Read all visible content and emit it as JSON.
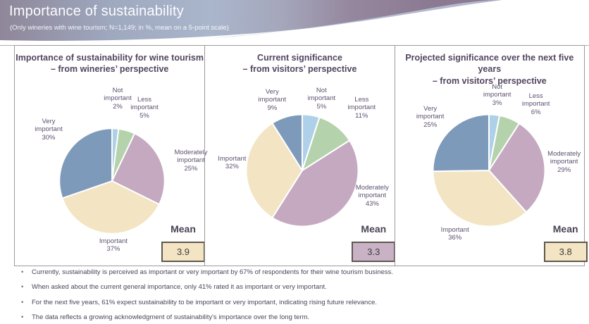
{
  "header": {
    "title": "Importance of sustainability",
    "subtitle": "(Only wineries with wine tourism; N=1,149; in %, mean on a 5-point scale)"
  },
  "colors": {
    "not_important": "#aed0e8",
    "less_important": "#b4d2ab",
    "moderately_important": "#c4a9c0",
    "important": "#f3e4c3",
    "very_important": "#7e9aba",
    "mean_box_tan": "#f3e4c3",
    "mean_box_mauve": "#c9b2c6",
    "mean_box_border": "#5f584e",
    "panel_border": "#9a9a9a"
  },
  "chart_data": [
    {
      "type": "pie",
      "title_line1": "Importance of sustainability for wine tourism",
      "title_line2": "– from wineries’ perspective",
      "legend_position": "around-slices",
      "slices": [
        {
          "label": "Not important",
          "value": 2,
          "value_label": "2%",
          "color": "#aed0e8"
        },
        {
          "label": "Less important",
          "value": 5,
          "value_label": "5%",
          "color": "#b4d2ab"
        },
        {
          "label": "Moderately important",
          "value": 25,
          "value_label": "25%",
          "color": "#c4a9c0"
        },
        {
          "label": "Important",
          "value": 37,
          "value_label": "37%",
          "color": "#f3e4c3"
        },
        {
          "label": "Very important",
          "value": 30,
          "value_label": "30%",
          "color": "#7e9aba"
        }
      ],
      "mean_label": "Mean",
      "mean_value": "3.9",
      "mean_box_color": "#f3e4c3"
    },
    {
      "type": "pie",
      "title_line1": "Current significance",
      "title_line2": "– from visitors’ perspective",
      "legend_position": "around-slices",
      "slices": [
        {
          "label": "Not important",
          "value": 5,
          "value_label": "5%",
          "color": "#aed0e8"
        },
        {
          "label": "Less important",
          "value": 11,
          "value_label": "11%",
          "color": "#b4d2ab"
        },
        {
          "label": "Moderately important",
          "value": 43,
          "value_label": "43%",
          "color": "#c4a9c0"
        },
        {
          "label": "Important",
          "value": 32,
          "value_label": "32%",
          "color": "#f3e4c3"
        },
        {
          "label": "Very important",
          "value": 9,
          "value_label": "9%",
          "color": "#7e9aba"
        }
      ],
      "mean_label": "Mean",
      "mean_value": "3.3",
      "mean_box_color": "#c9b2c6"
    },
    {
      "type": "pie",
      "title_line1": "Projected significance over the next five years",
      "title_line2": "– from visitors’ perspective",
      "legend_position": "around-slices",
      "slices": [
        {
          "label": "Not important",
          "value": 3,
          "value_label": "3%",
          "color": "#aed0e8"
        },
        {
          "label": "Less important",
          "value": 6,
          "value_label": "6%",
          "color": "#b4d2ab"
        },
        {
          "label": "Moderately important",
          "value": 29,
          "value_label": "29%",
          "color": "#c4a9c0"
        },
        {
          "label": "Important",
          "value": 36,
          "value_label": "36%",
          "color": "#f3e4c3"
        },
        {
          "label": "Very important",
          "value": 25,
          "value_label": "25%",
          "color": "#7e9aba"
        }
      ],
      "mean_label": "Mean",
      "mean_value": "3.8",
      "mean_box_color": "#f3e4c3"
    }
  ],
  "bullets": [
    "Currently, sustainability is perceived as important or very important by 67% of respondents for their wine tourism business.",
    "When asked about the current general importance, only 41% rated it as important or very important.",
    "For the next five years, 61% expect sustainability to be important or very important, indicating rising future relevance.",
    "The data reflects a growing acknowledgment of sustainability's importance over the long term."
  ]
}
